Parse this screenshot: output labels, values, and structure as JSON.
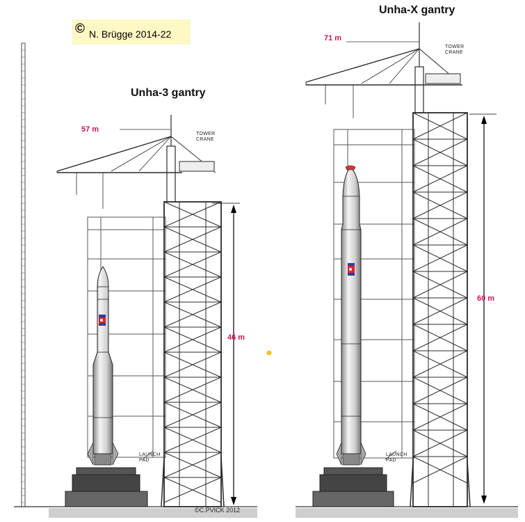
{
  "copyright": {
    "symbol": "©",
    "text": "N. Brügge 2014-22"
  },
  "left": {
    "title": "Unha-3 gantry",
    "crane_height": "57 m",
    "gantry_height": "46 m",
    "crane_label": "TOWER\nCRANE",
    "pad_label": "LAUNCH\nPAD",
    "credit": "©C.PVICK 2012"
  },
  "right": {
    "title": "Unha-X gantry",
    "crane_height": "71 m",
    "gantry_height": "60 m",
    "crane_label": "TOWER\nCRANE",
    "pad_label": "LAUNCH\nPAD"
  },
  "colors": {
    "measurement": "#d0145a",
    "note_bg": "#fdf8c4",
    "steel": "#2a2a2a",
    "rocket_body": "#dcdcdc",
    "rocket_nose_tip": "#d43a2a",
    "marker_dot": "#f2c11b"
  }
}
